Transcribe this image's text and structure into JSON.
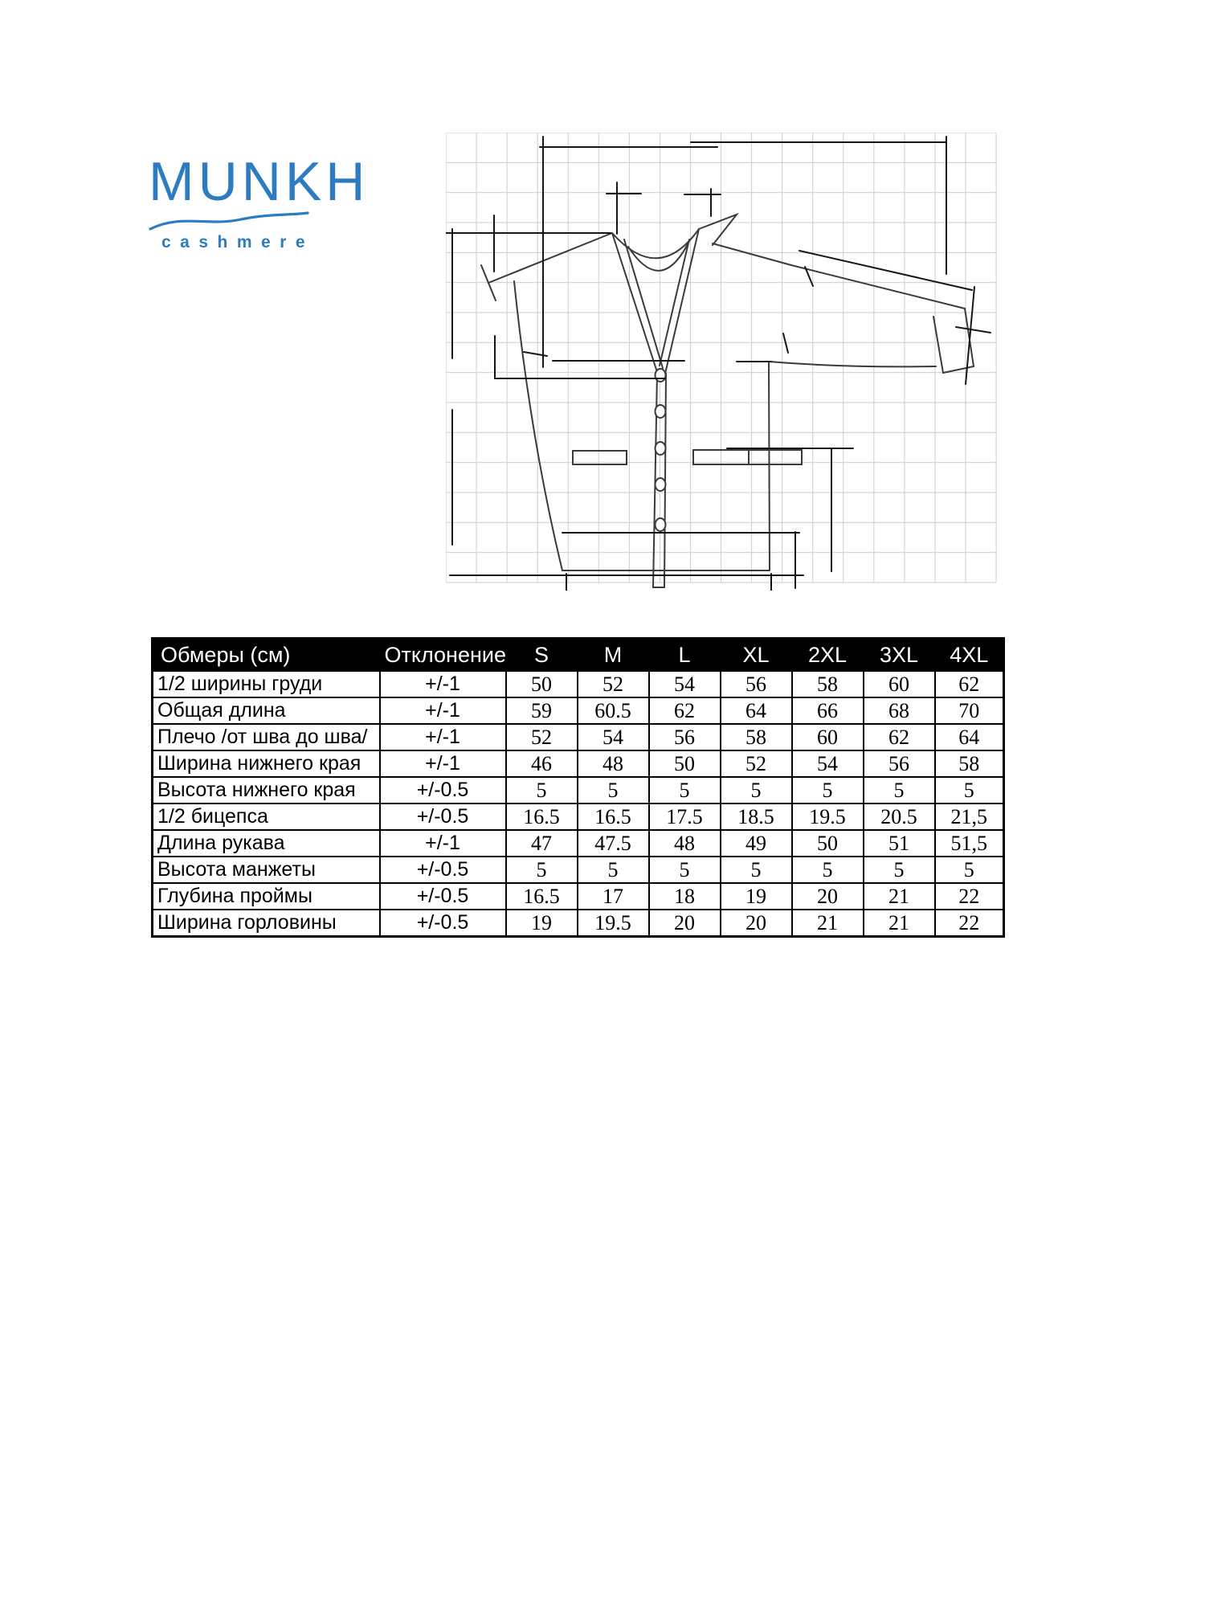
{
  "logo": {
    "brand": "MUNKH",
    "subtitle": "cashmere",
    "color": "#2d7bc0"
  },
  "drawing": {
    "name": "cardigan-technical-sketch"
  },
  "size_chart": {
    "columns": {
      "measure": "Обмеры (см)",
      "tolerance": "Отклонение",
      "sizes": [
        "S",
        "M",
        "L",
        "XL",
        "2XL",
        "3XL",
        "4XL"
      ]
    },
    "rows": [
      {
        "label": "1/2 ширины груди",
        "tolerance": "+/-1",
        "values": [
          "50",
          "52",
          "54",
          "56",
          "58",
          "60",
          "62"
        ]
      },
      {
        "label": "Общая длина",
        "tolerance": "+/-1",
        "values": [
          "59",
          "60.5",
          "62",
          "64",
          "66",
          "68",
          "70"
        ]
      },
      {
        "label": "Плечо /от шва до шва/",
        "tolerance": "+/-1",
        "values": [
          "52",
          "54",
          "56",
          "58",
          "60",
          "62",
          "64"
        ]
      },
      {
        "label": "Ширина нижнего края",
        "tolerance": "+/-1",
        "values": [
          "46",
          "48",
          "50",
          "52",
          "54",
          "56",
          "58"
        ]
      },
      {
        "label": "Высота нижнего края",
        "tolerance": "+/-0.5",
        "values": [
          "5",
          "5",
          "5",
          "5",
          "5",
          "5",
          "5"
        ]
      },
      {
        "label": "1/2 бицепса",
        "tolerance": "+/-0.5",
        "values": [
          "16.5",
          "16.5",
          "17.5",
          "18.5",
          "19.5",
          "20.5",
          "21,5"
        ]
      },
      {
        "label": "Длина рукава",
        "tolerance": "+/-1",
        "values": [
          "47",
          "47.5",
          "48",
          "49",
          "50",
          "51",
          "51,5"
        ]
      },
      {
        "label": "Высота манжеты",
        "tolerance": "+/-0.5",
        "values": [
          "5",
          "5",
          "5",
          "5",
          "5",
          "5",
          "5"
        ]
      },
      {
        "label": "Глубина проймы",
        "tolerance": "+/-0.5",
        "values": [
          "16.5",
          "17",
          "18",
          "19",
          "20",
          "21",
          "22"
        ]
      },
      {
        "label": "Ширина горловины",
        "tolerance": "+/-0.5",
        "values": [
          "19",
          "19.5",
          "20",
          "20",
          "21",
          "21",
          "22"
        ]
      }
    ]
  }
}
